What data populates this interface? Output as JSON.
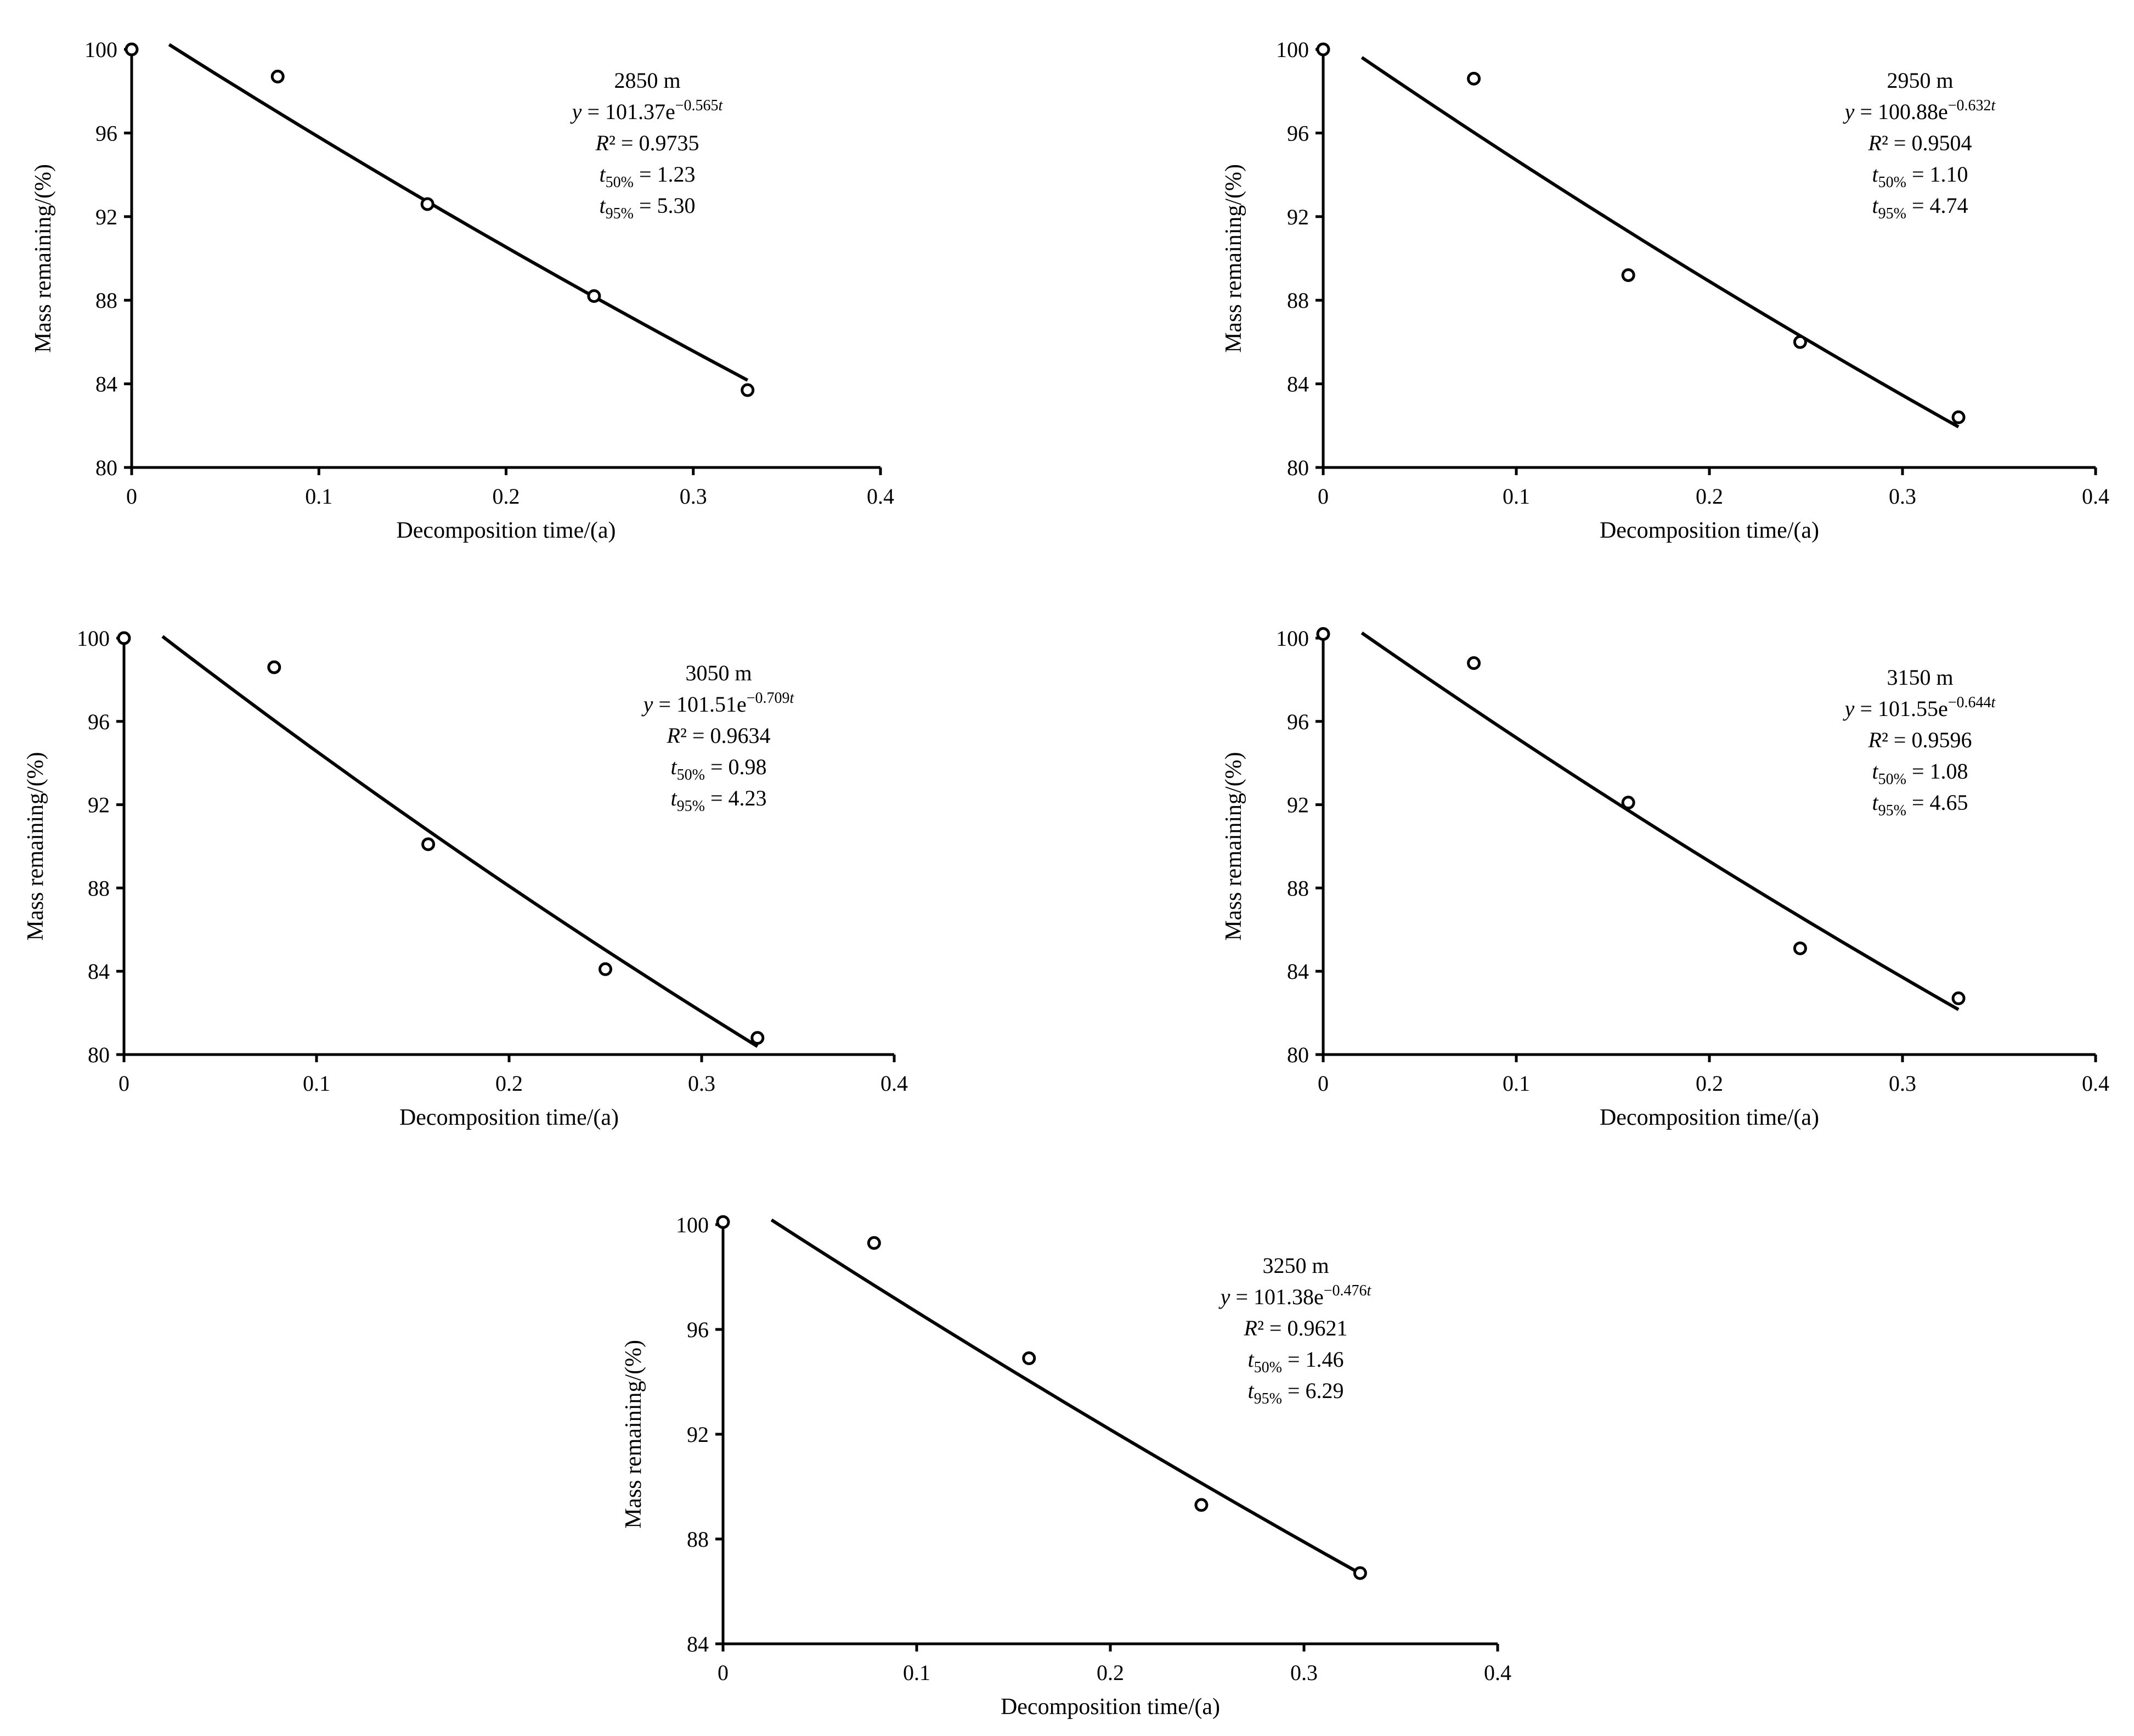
{
  "chart_data": [
    {
      "type": "scatter",
      "title": "2850 m",
      "xlabel": "Decomposition time/(a)",
      "ylabel": "Mass remaining/(%)",
      "xlim": [
        0,
        0.4
      ],
      "ylim": [
        80,
        100
      ],
      "xticks": [
        "0",
        "0.1",
        "0.2",
        "0.3",
        "0.4"
      ],
      "yticks": [
        "80",
        "84",
        "88",
        "92",
        "96",
        "100"
      ],
      "x": [
        0,
        0.078,
        0.158,
        0.247,
        0.329
      ],
      "y": [
        100,
        98.7,
        92.6,
        88.2,
        83.7
      ],
      "fit": {
        "label": "Exponential fit",
        "a": 101.37,
        "k": 0.565,
        "x_start": 0.02,
        "x_end": 0.329
      },
      "annotation": {
        "site": "2850 m",
        "eq_y": "y",
        "eq_mid": " = 101.37e",
        "eq_exp": "−0.565",
        "eq_t": "t",
        "r2_R": "R",
        "r2_rest": "² = 0.9735",
        "t": "t",
        "t50_sub": "50%",
        "t50_val": " = 1.23",
        "t95_sub": "95%",
        "t95_val": " = 5.30"
      }
    },
    {
      "type": "scatter",
      "title": "2950 m",
      "xlabel": "Decomposition time/(a)",
      "ylabel": "Mass remaining/(%)",
      "xlim": [
        0,
        0.4
      ],
      "ylim": [
        80,
        100
      ],
      "xticks": [
        "0",
        "0.1",
        "0.2",
        "0.3",
        "0.4"
      ],
      "yticks": [
        "80",
        "84",
        "88",
        "92",
        "96",
        "100"
      ],
      "x": [
        0,
        0.078,
        0.158,
        0.247,
        0.329
      ],
      "y": [
        100,
        98.6,
        89.2,
        86.0,
        82.4
      ],
      "fit": {
        "label": "Exponential fit",
        "a": 100.88,
        "k": 0.632,
        "x_start": 0.02,
        "x_end": 0.329
      },
      "annotation": {
        "site": "2950 m",
        "eq_y": "y",
        "eq_mid": " = 100.88e",
        "eq_exp": "−0.632",
        "eq_t": "t",
        "r2_R": "R",
        "r2_rest": "² = 0.9504",
        "t": "t",
        "t50_sub": "50%",
        "t50_val": " = 1.10",
        "t95_sub": "95%",
        "t95_val": " = 4.74"
      }
    },
    {
      "type": "scatter",
      "title": "3050 m",
      "xlabel": "Decomposition time/(a)",
      "ylabel": "Mass remaining/(%)",
      "xlim": [
        0,
        0.4
      ],
      "ylim": [
        80,
        100
      ],
      "xticks": [
        "0",
        "0.1",
        "0.2",
        "0.3",
        "0.4"
      ],
      "yticks": [
        "80",
        "84",
        "88",
        "92",
        "96",
        "100"
      ],
      "x": [
        0,
        0.078,
        0.158,
        0.25,
        0.329
      ],
      "y": [
        100,
        98.6,
        90.1,
        84.1,
        80.8
      ],
      "fit": {
        "label": "Exponential fit",
        "a": 101.51,
        "k": 0.709,
        "x_start": 0.02,
        "x_end": 0.329
      },
      "annotation": {
        "site": "3050 m",
        "eq_y": "y",
        "eq_mid": " = 101.51e",
        "eq_exp": "−0.709",
        "eq_t": "t",
        "r2_R": "R",
        "r2_rest": "² = 0.9634",
        "t": "t",
        "t50_sub": "50%",
        "t50_val": " = 0.98",
        "t95_sub": "95%",
        "t95_val": " = 4.23"
      }
    },
    {
      "type": "scatter",
      "title": "3150 m",
      "xlabel": "Decomposition time/(a)",
      "ylabel": "Mass remaining/(%)",
      "xlim": [
        0,
        0.4
      ],
      "ylim": [
        80,
        100
      ],
      "xticks": [
        "0",
        "0.1",
        "0.2",
        "0.3",
        "0.4"
      ],
      "yticks": [
        "80",
        "84",
        "88",
        "92",
        "96",
        "100"
      ],
      "x": [
        0,
        0.078,
        0.158,
        0.247,
        0.329
      ],
      "y": [
        100.2,
        98.8,
        92.1,
        85.1,
        82.7
      ],
      "fit": {
        "label": "Exponential fit",
        "a": 101.55,
        "k": 0.644,
        "x_start": 0.02,
        "x_end": 0.329
      },
      "annotation": {
        "site": "3150 m",
        "eq_y": "y",
        "eq_mid": " = 101.55e",
        "eq_exp": "−0.644",
        "eq_t": "t",
        "r2_R": "R",
        "r2_rest": "² = 0.9596",
        "t": "t",
        "t50_sub": "50%",
        "t50_val": " = 1.08",
        "t95_sub": "95%",
        "t95_val": " = 4.65"
      }
    },
    {
      "type": "scatter",
      "title": "3250 m",
      "xlabel": "Decomposition time/(a)",
      "ylabel": "Mass remaining/(%)",
      "xlim": [
        0,
        0.4
      ],
      "ylim": [
        84,
        100
      ],
      "xticks": [
        "0",
        "0.1",
        "0.2",
        "0.3",
        "0.4"
      ],
      "yticks": [
        "84",
        "88",
        "92",
        "96",
        "100"
      ],
      "x": [
        0,
        0.078,
        0.158,
        0.247,
        0.329
      ],
      "y": [
        100.1,
        99.3,
        94.9,
        89.3,
        86.7
      ],
      "fit": {
        "label": "Exponential fit",
        "a": 101.38,
        "k": 0.476,
        "x_start": 0.025,
        "x_end": 0.329
      },
      "annotation": {
        "site": "3250 m",
        "eq_y": "y",
        "eq_mid": " = 101.38e",
        "eq_exp": "−0.476",
        "eq_t": "t",
        "r2_R": "R",
        "r2_rest": "² = 0.9621",
        "t": "t",
        "t50_sub": "50%",
        "t50_val": " = 1.46",
        "t95_sub": "95%",
        "t95_val": " = 6.29"
      }
    }
  ]
}
